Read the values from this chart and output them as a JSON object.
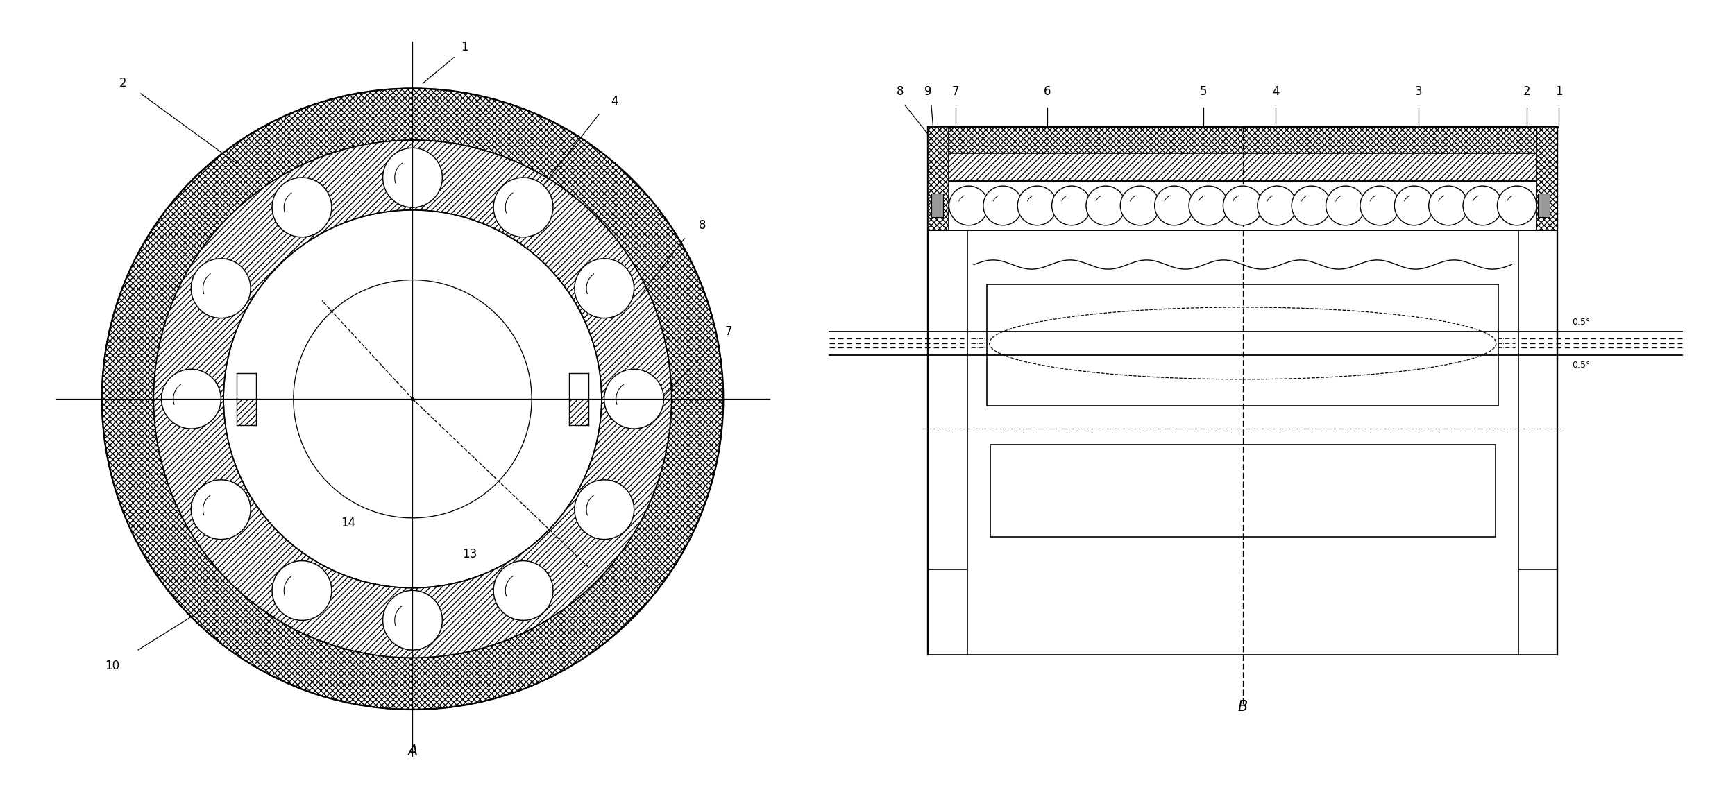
{
  "bg": "#ffffff",
  "lc": "#000000",
  "fig_w": 24.77,
  "fig_h": 11.39,
  "fontsize_label": 12,
  "fontsize_view": 15
}
